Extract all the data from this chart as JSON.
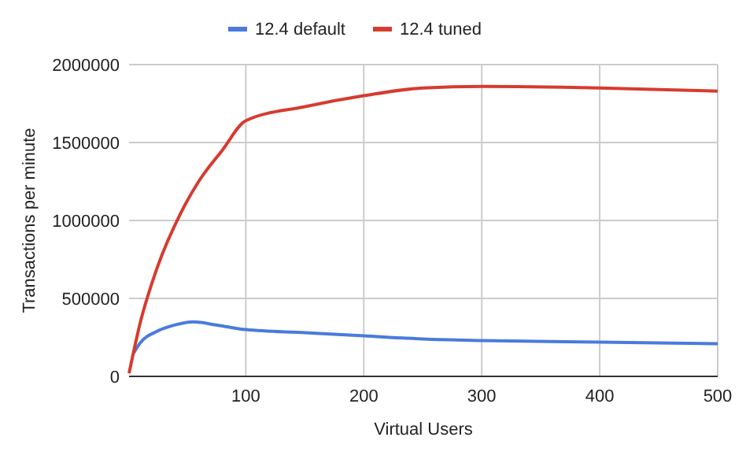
{
  "chart_data": {
    "type": "line",
    "xlabel": "Virtual Users",
    "ylabel": "Transactions per minute",
    "xlim": [
      1,
      500
    ],
    "xticks": [
      100,
      200,
      300,
      400,
      500
    ],
    "ylim": [
      0,
      2000000
    ],
    "yticks": [
      0,
      500000,
      1000000,
      1500000,
      2000000
    ],
    "grid": true,
    "legend": "top",
    "marker": "none",
    "line_style": "solid",
    "series": [
      {
        "name": "12.4 default",
        "color": "#4a7bdc",
        "x": [
          5,
          10,
          25,
          40,
          55,
          75,
          100,
          150,
          200,
          250,
          300,
          400,
          500
        ],
        "values": [
          150000,
          210000,
          290000,
          330000,
          350000,
          330000,
          300000,
          280000,
          260000,
          240000,
          230000,
          220000,
          210000
        ]
      },
      {
        "name": "12.4 tuned",
        "color": "#d63b2f",
        "x": [
          1,
          10,
          25,
          45,
          60,
          80,
          100,
          150,
          200,
          250,
          300,
          400,
          500
        ],
        "values": [
          20000,
          330000,
          700000,
          1050000,
          1250000,
          1450000,
          1640000,
          1730000,
          1800000,
          1850000,
          1860000,
          1850000,
          1830000
        ]
      }
    ]
  }
}
